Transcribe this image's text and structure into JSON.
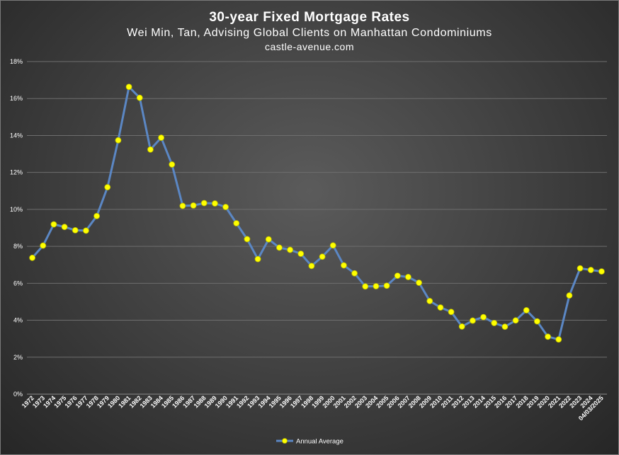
{
  "chart_data": {
    "type": "line",
    "title": "30-year Fixed Mortgage Rates",
    "subtitle": "Wei Min, Tan, Advising Global Clients on Manhattan Condominiums",
    "source": "castle-avenue.com",
    "xlabel": "",
    "ylabel": "",
    "ylim": [
      0,
      18
    ],
    "y_ticks": [
      "0%",
      "2%",
      "4%",
      "6%",
      "8%",
      "10%",
      "12%",
      "14%",
      "16%",
      "18%"
    ],
    "grid": true,
    "legend_position": "bottom",
    "categories": [
      "1972",
      "1973",
      "1974",
      "1975",
      "1976",
      "1977",
      "1978",
      "1979",
      "1980",
      "1981",
      "1982",
      "1983",
      "1984",
      "1985",
      "1986",
      "1987",
      "1988",
      "1989",
      "1990",
      "1991",
      "1992",
      "1993",
      "1994",
      "1995",
      "1996",
      "1997",
      "1998",
      "1999",
      "2000",
      "2001",
      "2002",
      "2003",
      "2004",
      "2005",
      "2006",
      "2007",
      "2008",
      "2009",
      "2010",
      "2011",
      "2012",
      "2013",
      "2014",
      "2015",
      "2016",
      "2017",
      "2018",
      "2019",
      "2020",
      "2021",
      "2022",
      "2023",
      "2024",
      "04/03/2025"
    ],
    "series": [
      {
        "name": "Annual Average",
        "line_color": "#5b87c4",
        "marker_color": "#ffff00",
        "values": [
          7.38,
          8.04,
          9.19,
          9.05,
          8.87,
          8.85,
          9.64,
          11.2,
          13.74,
          16.63,
          16.04,
          13.24,
          13.88,
          12.43,
          10.19,
          10.21,
          10.34,
          10.32,
          10.13,
          9.25,
          8.39,
          7.31,
          8.38,
          7.93,
          7.81,
          7.6,
          6.94,
          7.44,
          8.05,
          6.97,
          6.54,
          5.83,
          5.84,
          5.87,
          6.41,
          6.34,
          6.03,
          5.04,
          4.69,
          4.45,
          3.66,
          3.98,
          4.17,
          3.85,
          3.65,
          3.99,
          4.54,
          3.94,
          3.11,
          2.96,
          5.34,
          6.81,
          6.72,
          6.64
        ]
      }
    ]
  }
}
